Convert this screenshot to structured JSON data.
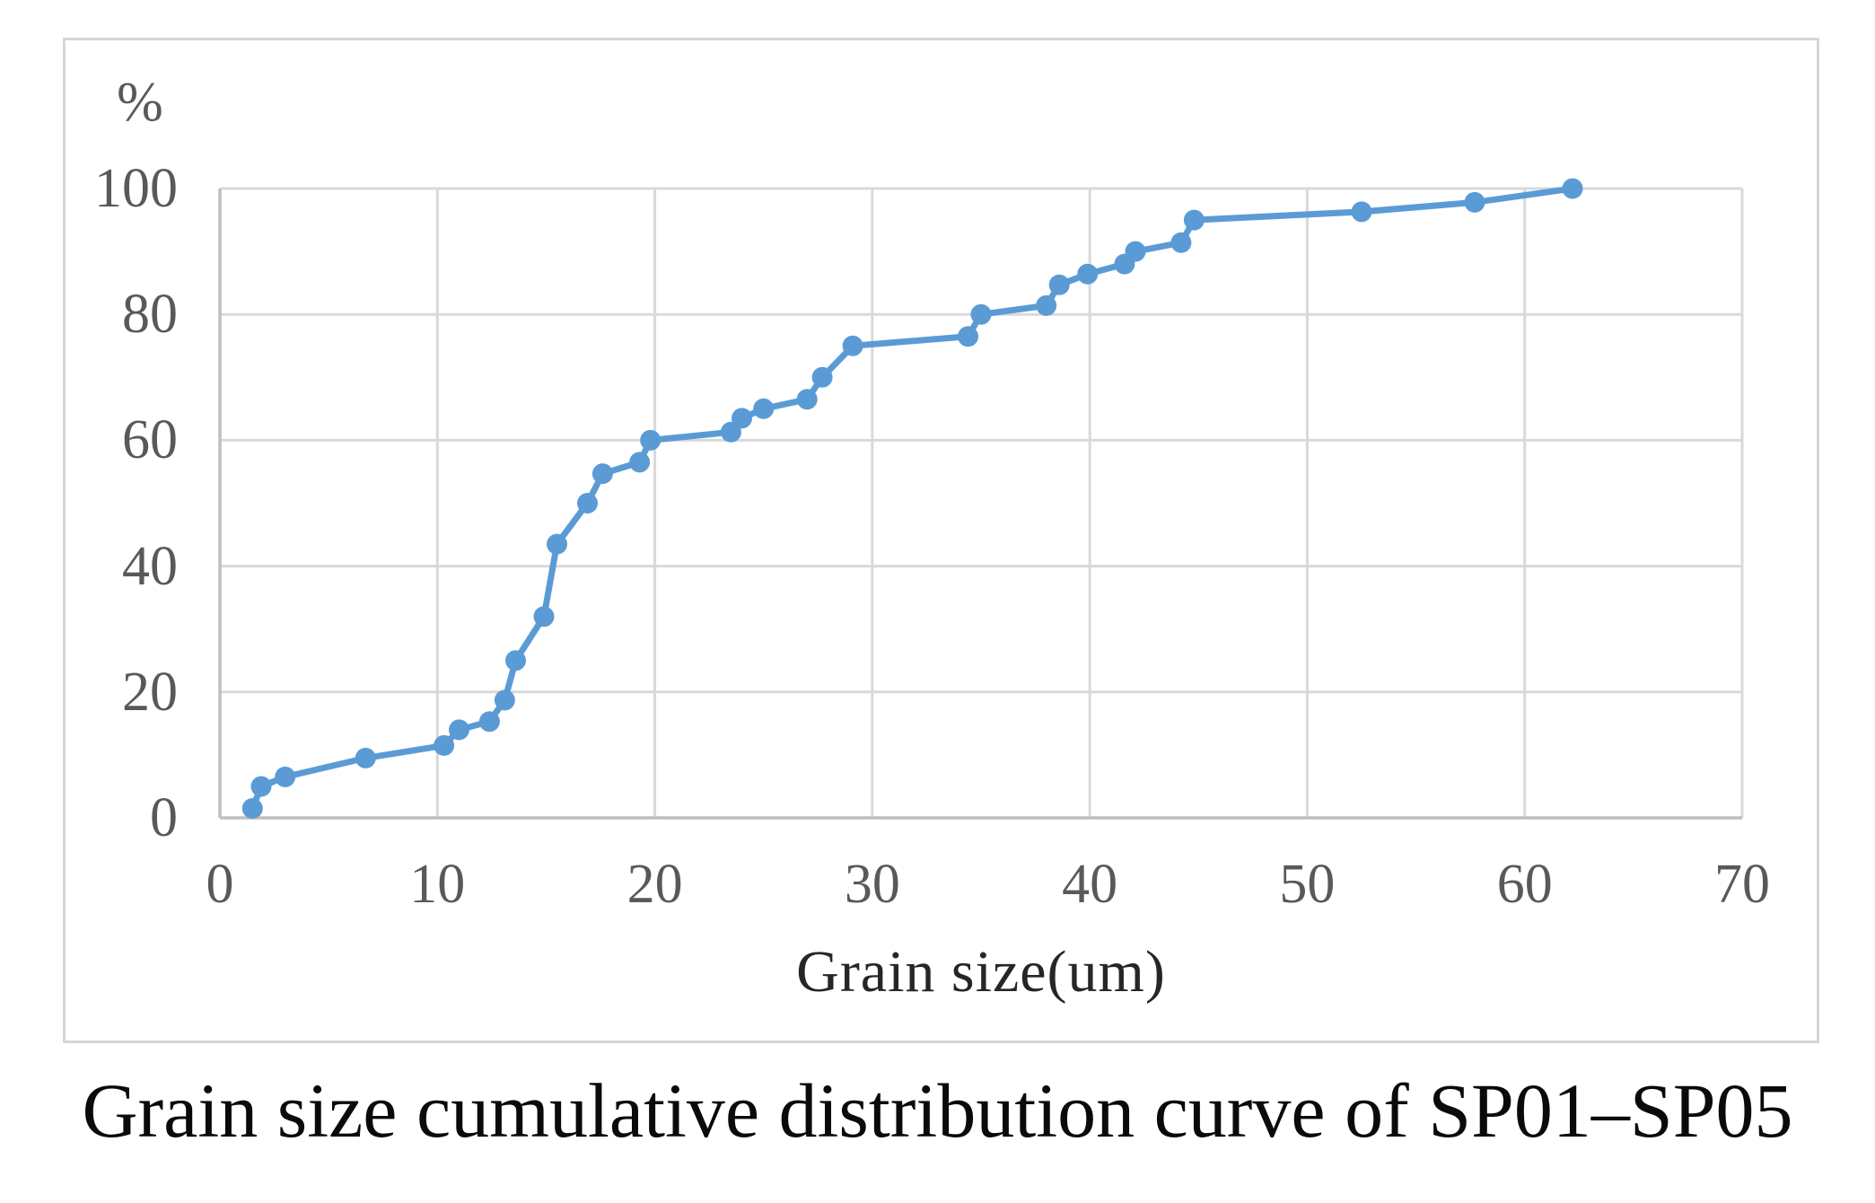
{
  "figure": {
    "caption": "Grain size cumulative distribution curve of SP01–SP05"
  },
  "chart_data": {
    "type": "line",
    "title": "",
    "x_axis_title": "Grain size(um)",
    "y_axis_unit": "%",
    "xlabel": "Grain size(um)",
    "ylabel": "%",
    "xlim": [
      0,
      70
    ],
    "ylim": [
      0,
      100
    ],
    "x_ticks": [
      0,
      10,
      20,
      30,
      40,
      50,
      60,
      70
    ],
    "y_ticks": [
      0,
      20,
      40,
      60,
      80,
      100
    ],
    "grid": true,
    "legend_position": "none",
    "marker": "circle",
    "series": [
      {
        "name": "Grain size cumulative distribution SP01–SP05",
        "points": [
          [
            1.5,
            1.5
          ],
          [
            1.9,
            5
          ],
          [
            3.0,
            6.5
          ],
          [
            6.7,
            9.5
          ],
          [
            10.3,
            11.5
          ],
          [
            11.0,
            14
          ],
          [
            12.4,
            15.3
          ],
          [
            13.1,
            18.7
          ],
          [
            13.6,
            25
          ],
          [
            14.9,
            32
          ],
          [
            15.5,
            43.5
          ],
          [
            16.9,
            50
          ],
          [
            17.6,
            54.7
          ],
          [
            19.3,
            56.5
          ],
          [
            19.8,
            60
          ],
          [
            23.5,
            61.3
          ],
          [
            24.0,
            63.5
          ],
          [
            25.0,
            65
          ],
          [
            27.0,
            66.5
          ],
          [
            27.7,
            70
          ],
          [
            29.1,
            75
          ],
          [
            34.4,
            76.5
          ],
          [
            35.0,
            80
          ],
          [
            38.0,
            81.4
          ],
          [
            38.6,
            84.7
          ],
          [
            39.9,
            86.4
          ],
          [
            41.6,
            88
          ],
          [
            42.1,
            90
          ],
          [
            44.2,
            91.4
          ],
          [
            44.8,
            95
          ],
          [
            52.5,
            96.3
          ],
          [
            57.7,
            97.8
          ],
          [
            62.2,
            100
          ]
        ]
      }
    ],
    "colors": {
      "line": "#5B9BD5",
      "marker": "#5B9BD5",
      "gridline": "#D9D9D9",
      "axis_line": "#BFBFBF",
      "tick_text": "#595959",
      "caption_text": "#0A0A0A",
      "frame_border": "#D6D6D6"
    }
  }
}
